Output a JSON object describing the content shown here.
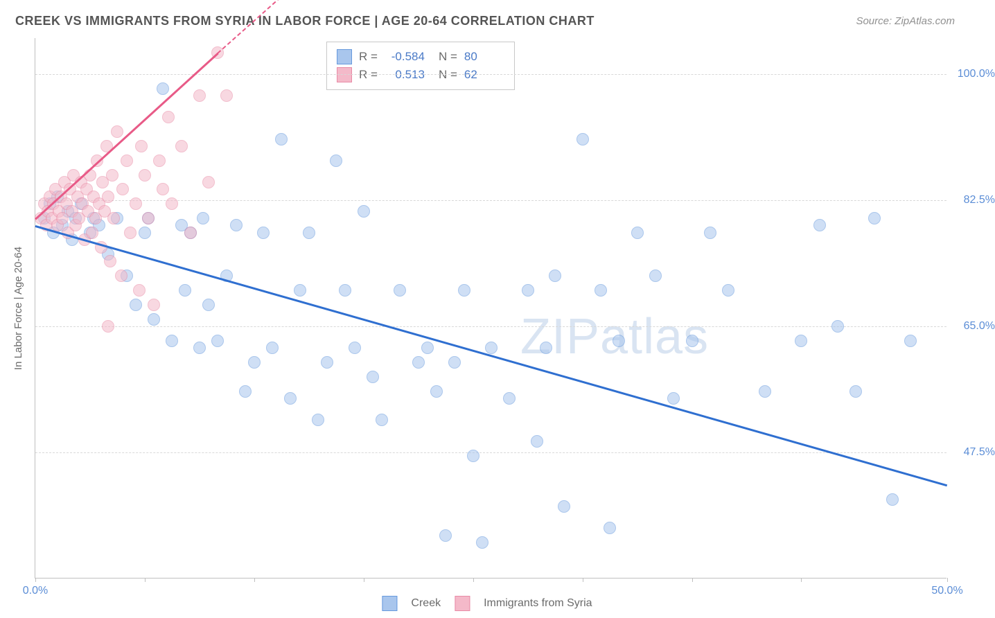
{
  "title": "CREEK VS IMMIGRANTS FROM SYRIA IN LABOR FORCE | AGE 20-64 CORRELATION CHART",
  "source": "Source: ZipAtlas.com",
  "y_axis_title": "In Labor Force | Age 20-64",
  "watermark_bold": "ZIP",
  "watermark_thin": "atlas",
  "chart": {
    "type": "scatter-correlation",
    "xlim": [
      0,
      50
    ],
    "ylim": [
      30,
      105
    ],
    "x_ticks": [
      0,
      6,
      12,
      18,
      24,
      30,
      36,
      42,
      50
    ],
    "x_tick_labels": {
      "0": "0.0%",
      "50": "50.0%"
    },
    "y_gridlines": [
      47.5,
      65.0,
      82.5,
      100.0
    ],
    "y_tick_labels": [
      "47.5%",
      "65.0%",
      "82.5%",
      "100.0%"
    ],
    "grid_color": "#d8d8d8",
    "axis_color": "#bfbfbf",
    "tick_label_color": "#5b8dd6",
    "background_color": "#ffffff",
    "marker_radius": 9,
    "marker_opacity": 0.55
  },
  "series": [
    {
      "name": "Creek",
      "fill": "#a9c6ed",
      "stroke": "#6699dd",
      "trend_color": "#2f6fd0",
      "trend": {
        "x1": 0,
        "y1": 79,
        "x2": 50,
        "y2": 43
      },
      "R": "-0.584",
      "N": "80",
      "points": [
        [
          0.5,
          80
        ],
        [
          0.8,
          82
        ],
        [
          1.0,
          78
        ],
        [
          1.2,
          83
        ],
        [
          1.5,
          79
        ],
        [
          1.8,
          81
        ],
        [
          2.0,
          77
        ],
        [
          2.2,
          80
        ],
        [
          2.5,
          82
        ],
        [
          3.0,
          78
        ],
        [
          3.2,
          80
        ],
        [
          3.5,
          79
        ],
        [
          4.0,
          75
        ],
        [
          4.5,
          80
        ],
        [
          5.0,
          72
        ],
        [
          5.5,
          68
        ],
        [
          6.0,
          78
        ],
        [
          6.2,
          80
        ],
        [
          6.5,
          66
        ],
        [
          7.0,
          98
        ],
        [
          7.5,
          63
        ],
        [
          8.0,
          79
        ],
        [
          8.2,
          70
        ],
        [
          8.5,
          78
        ],
        [
          9.0,
          62
        ],
        [
          9.2,
          80
        ],
        [
          9.5,
          68
        ],
        [
          10.0,
          63
        ],
        [
          10.5,
          72
        ],
        [
          11.0,
          79
        ],
        [
          11.5,
          56
        ],
        [
          12.0,
          60
        ],
        [
          12.5,
          78
        ],
        [
          13.0,
          62
        ],
        [
          13.5,
          91
        ],
        [
          14.0,
          55
        ],
        [
          14.5,
          70
        ],
        [
          15.0,
          78
        ],
        [
          15.5,
          52
        ],
        [
          16.0,
          60
        ],
        [
          16.5,
          88
        ],
        [
          17.0,
          70
        ],
        [
          17.5,
          62
        ],
        [
          18.0,
          81
        ],
        [
          18.5,
          58
        ],
        [
          19.0,
          52
        ],
        [
          20.0,
          70
        ],
        [
          21.0,
          60
        ],
        [
          21.5,
          62
        ],
        [
          22.0,
          56
        ],
        [
          22.5,
          36
        ],
        [
          23.0,
          60
        ],
        [
          23.5,
          70
        ],
        [
          24.0,
          47
        ],
        [
          24.5,
          35
        ],
        [
          25.0,
          62
        ],
        [
          26.0,
          55
        ],
        [
          27.0,
          70
        ],
        [
          27.5,
          49
        ],
        [
          28.0,
          62
        ],
        [
          28.5,
          72
        ],
        [
          29.0,
          40
        ],
        [
          30.0,
          91
        ],
        [
          31.0,
          70
        ],
        [
          31.5,
          37
        ],
        [
          32.0,
          63
        ],
        [
          33.0,
          78
        ],
        [
          34.0,
          72
        ],
        [
          35.0,
          55
        ],
        [
          36.0,
          63
        ],
        [
          37.0,
          78
        ],
        [
          38.0,
          70
        ],
        [
          40.0,
          56
        ],
        [
          42.0,
          63
        ],
        [
          43.0,
          79
        ],
        [
          44.0,
          65
        ],
        [
          45.0,
          56
        ],
        [
          46.0,
          80
        ],
        [
          47.0,
          41
        ],
        [
          48.0,
          63
        ]
      ]
    },
    {
      "name": "Immigrants from Syria",
      "fill": "#f4b9c9",
      "stroke": "#e88aa5",
      "trend_color": "#e85a87",
      "trend": {
        "x1": 0,
        "y1": 80,
        "x2": 10,
        "y2": 103
      },
      "trend_dashed_ext": {
        "x1": 10,
        "y1": 103,
        "x2": 14,
        "y2": 112
      },
      "R": "0.513",
      "N": "62",
      "points": [
        [
          0.3,
          80
        ],
        [
          0.5,
          82
        ],
        [
          0.6,
          79
        ],
        [
          0.7,
          81
        ],
        [
          0.8,
          83
        ],
        [
          0.9,
          80
        ],
        [
          1.0,
          82
        ],
        [
          1.1,
          84
        ],
        [
          1.2,
          79
        ],
        [
          1.3,
          81
        ],
        [
          1.4,
          83
        ],
        [
          1.5,
          80
        ],
        [
          1.6,
          85
        ],
        [
          1.7,
          82
        ],
        [
          1.8,
          78
        ],
        [
          1.9,
          84
        ],
        [
          2.0,
          81
        ],
        [
          2.1,
          86
        ],
        [
          2.2,
          79
        ],
        [
          2.3,
          83
        ],
        [
          2.4,
          80
        ],
        [
          2.5,
          85
        ],
        [
          2.6,
          82
        ],
        [
          2.7,
          77
        ],
        [
          2.8,
          84
        ],
        [
          2.9,
          81
        ],
        [
          3.0,
          86
        ],
        [
          3.1,
          78
        ],
        [
          3.2,
          83
        ],
        [
          3.3,
          80
        ],
        [
          3.4,
          88
        ],
        [
          3.5,
          82
        ],
        [
          3.6,
          76
        ],
        [
          3.7,
          85
        ],
        [
          3.8,
          81
        ],
        [
          3.9,
          90
        ],
        [
          4.0,
          83
        ],
        [
          4.1,
          74
        ],
        [
          4.2,
          86
        ],
        [
          4.3,
          80
        ],
        [
          4.5,
          92
        ],
        [
          4.7,
          72
        ],
        [
          4.8,
          84
        ],
        [
          5.0,
          88
        ],
        [
          5.2,
          78
        ],
        [
          5.5,
          82
        ],
        [
          5.7,
          70
        ],
        [
          5.8,
          90
        ],
        [
          6.0,
          86
        ],
        [
          6.2,
          80
        ],
        [
          6.5,
          68
        ],
        [
          6.8,
          88
        ],
        [
          7.0,
          84
        ],
        [
          7.3,
          94
        ],
        [
          7.5,
          82
        ],
        [
          8.0,
          90
        ],
        [
          8.5,
          78
        ],
        [
          9.0,
          97
        ],
        [
          9.5,
          85
        ],
        [
          10.0,
          103
        ],
        [
          10.5,
          97
        ],
        [
          4.0,
          65
        ]
      ]
    }
  ],
  "stats_box": {
    "label_R": "R =",
    "label_N": "N ="
  },
  "legend": {
    "items": [
      "Creek",
      "Immigrants from Syria"
    ]
  }
}
